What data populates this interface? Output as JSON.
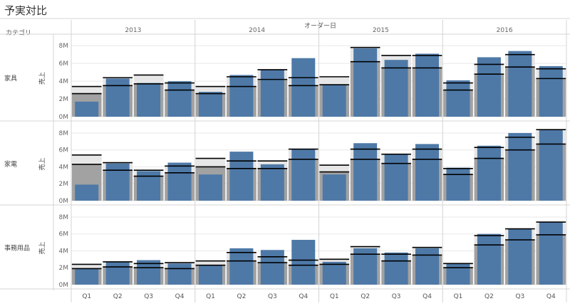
{
  "title": "予実対比",
  "header": {
    "category_label": "カテゴリ",
    "date_label": "オーダー日"
  },
  "chart_data": {
    "type": "bar",
    "title": "予実対比",
    "xlabel": "オーダー日",
    "ylabel": "売上",
    "ylim": [
      0,
      8.5
    ],
    "years": [
      "2013",
      "2014",
      "2015",
      "2016"
    ],
    "quarters": [
      "Q1",
      "Q2",
      "Q3",
      "Q4"
    ],
    "y_ticks": [
      "0M",
      "2M",
      "4M",
      "6M",
      "8M"
    ],
    "grid": true,
    "rows": [
      {
        "category": "家具",
        "actual": [
          1.7,
          4.3,
          3.8,
          4.0,
          2.8,
          4.7,
          5.3,
          6.6,
          3.6,
          7.7,
          6.4,
          7.1,
          4.1,
          6.7,
          7.4,
          5.7
        ],
        "band_low": [
          2.6,
          3.5,
          3.7,
          3.0,
          2.6,
          3.4,
          4.2,
          3.5,
          3.6,
          6.2,
          5.5,
          5.5,
          3.0,
          4.8,
          5.6,
          4.3
        ],
        "band_high": [
          3.4,
          4.4,
          4.7,
          3.8,
          3.4,
          4.5,
          5.3,
          4.4,
          4.5,
          7.8,
          6.9,
          6.9,
          3.8,
          5.9,
          7.0,
          5.4
        ]
      },
      {
        "category": "家電",
        "actual": [
          1.9,
          4.4,
          3.5,
          4.5,
          3.1,
          5.8,
          4.3,
          6.1,
          3.1,
          6.8,
          5.5,
          6.7,
          3.9,
          6.5,
          8.0,
          8.4
        ],
        "band_low": [
          4.3,
          3.6,
          2.9,
          3.3,
          4.0,
          3.8,
          3.8,
          4.9,
          3.4,
          4.9,
          4.4,
          4.9,
          3.1,
          5.0,
          6.0,
          6.7
        ],
        "band_high": [
          5.4,
          4.5,
          3.6,
          4.1,
          5.0,
          4.7,
          4.7,
          6.1,
          4.2,
          6.1,
          5.5,
          6.1,
          3.8,
          6.3,
          7.5,
          8.4
        ]
      },
      {
        "category": "事務用品",
        "actual": [
          1.9,
          2.7,
          2.9,
          2.5,
          2.3,
          4.3,
          4.1,
          5.3,
          2.7,
          4.3,
          3.8,
          4.3,
          2.5,
          6.0,
          6.6,
          7.4
        ],
        "band_low": [
          1.9,
          2.1,
          2.0,
          1.9,
          2.3,
          2.8,
          2.6,
          2.3,
          2.4,
          3.6,
          2.8,
          3.5,
          2.0,
          4.7,
          5.3,
          5.9
        ],
        "band_high": [
          2.4,
          2.7,
          2.5,
          2.6,
          2.8,
          3.8,
          3.3,
          2.9,
          3.0,
          4.5,
          3.6,
          4.4,
          2.5,
          5.8,
          6.6,
          7.4
        ]
      }
    ],
    "colors": {
      "actual": "#4e79a7",
      "band": "#a2a2a2",
      "band_light": "#e6e6e6",
      "target_line": "#000000",
      "grid": "#e8e8e8",
      "divider": "#d4d4d4"
    }
  }
}
